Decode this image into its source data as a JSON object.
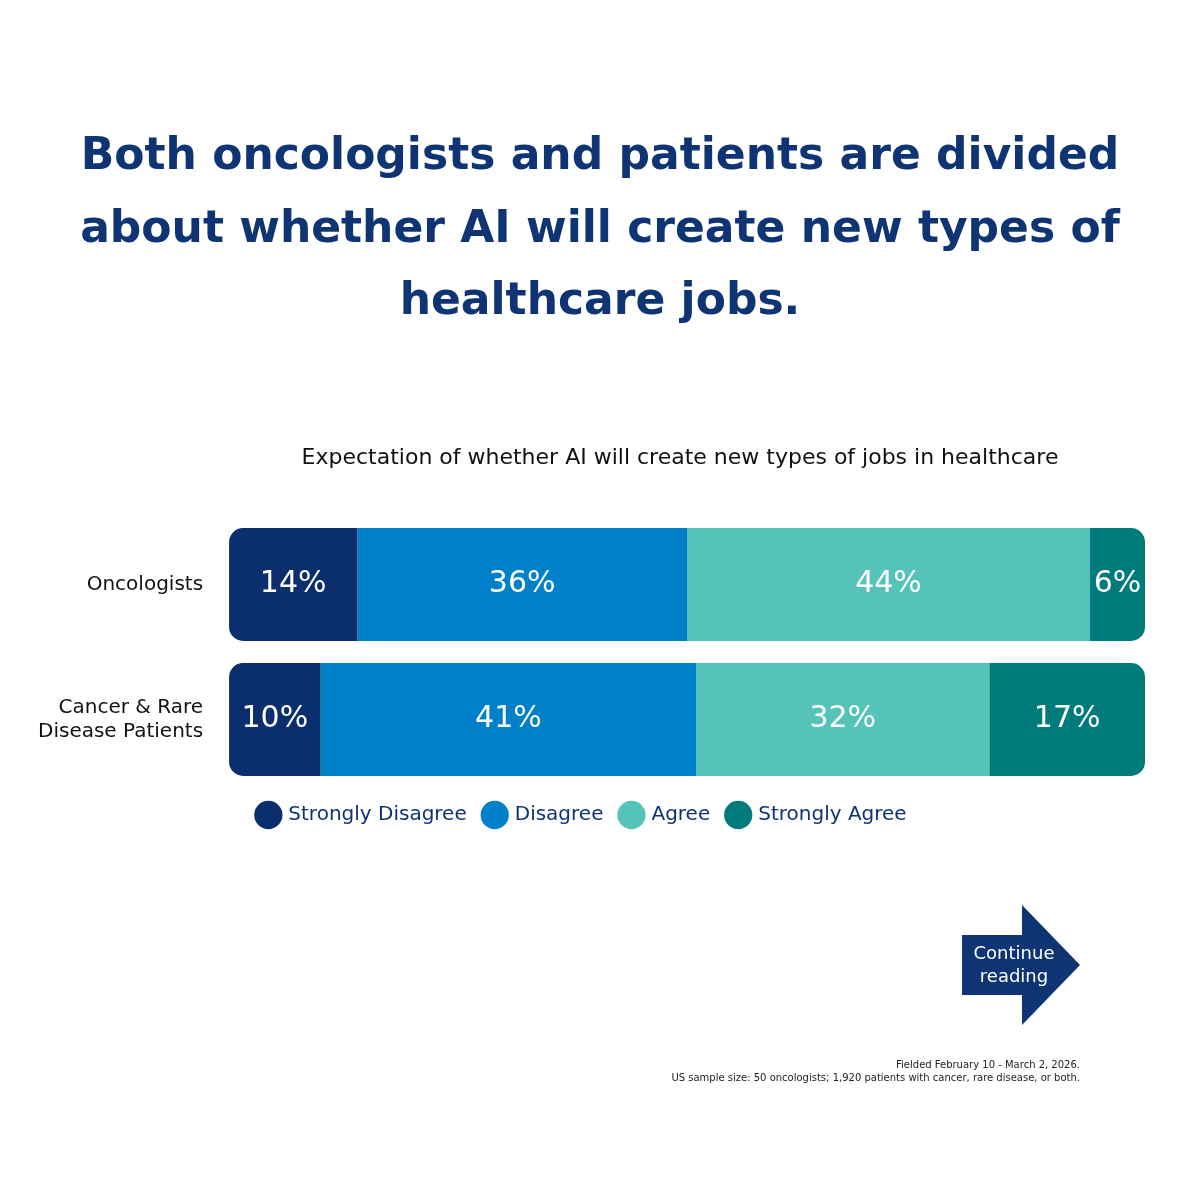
{
  "chart_data": {
    "type": "bar",
    "orientation": "horizontal",
    "title": "Both oncologists and patients are divided about whether AI will create new types of healthcare jobs.",
    "subtitle": "Expectation of whether AI will create new types of jobs in healthcare",
    "categories": [
      "Oncologists",
      "Cancer & Rare Disease Patients"
    ],
    "series": [
      {
        "name": "Strongly Disagree",
        "color": "#0b2f6e",
        "values": [
          14,
          10
        ],
        "value_labels": [
          "14%",
          "10%"
        ]
      },
      {
        "name": "Disagree",
        "color": "#0080c8",
        "values": [
          36,
          41
        ],
        "value_labels": [
          "36%",
          "41%"
        ]
      },
      {
        "name": "Agree",
        "color": "#55c3b8",
        "values": [
          44,
          32
        ],
        "value_labels": [
          "44%",
          "32%"
        ]
      },
      {
        "name": "Strongly Agree",
        "color": "#007b7b",
        "values": [
          6,
          17
        ],
        "value_labels": [
          "6%",
          "17%"
        ]
      }
    ],
    "stacked": true,
    "tick_labels": "y",
    "legend": "bottom",
    "annotations": [
      "Continue reading",
      "Fielded February 10 - March 2, 2026.",
      "US sample size: 50 oncologists; 1,920 patients with cancer, rare disease, or both."
    ]
  }
}
